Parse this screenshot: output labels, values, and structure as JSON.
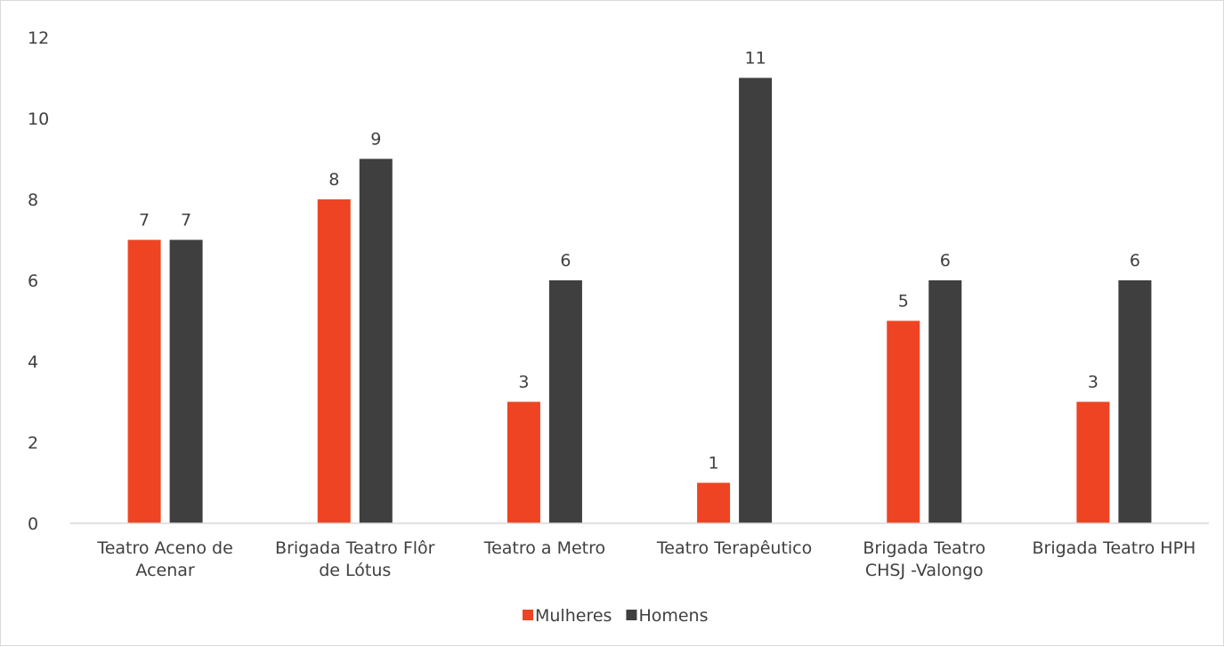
{
  "chart_data": {
    "type": "bar",
    "categories": [
      [
        "Teatro Aceno de",
        "Acenar"
      ],
      [
        "Brigada Teatro Flôr",
        "de Lótus"
      ],
      [
        "Teatro a Metro"
      ],
      [
        "Teatro Terapêutico"
      ],
      [
        "Brigada Teatro",
        "CHSJ -Valongo"
      ],
      [
        "Brigada Teatro HPH"
      ]
    ],
    "series": [
      {
        "name": "Mulheres",
        "color": "#ee4423",
        "values": [
          7,
          8,
          3,
          1,
          5,
          3
        ]
      },
      {
        "name": "Homens",
        "color": "#3f3f3f",
        "values": [
          7,
          9,
          6,
          11,
          6,
          6
        ]
      }
    ],
    "ylim": [
      0,
      12
    ],
    "yticks": [
      0,
      2,
      4,
      6,
      8,
      10,
      12
    ],
    "grid": false,
    "legend": "bottom-center",
    "data_labels": true
  }
}
